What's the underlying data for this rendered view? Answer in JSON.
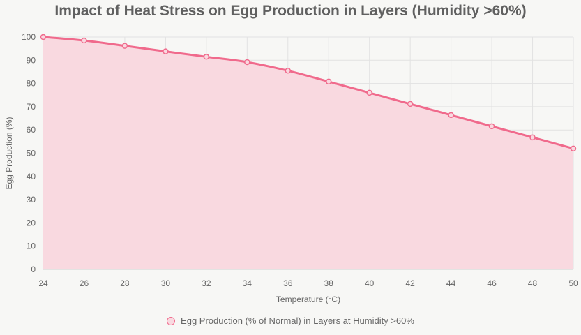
{
  "colors": {
    "line": "#f06a8c",
    "fill": "#f9d9e0",
    "grid": "#e2e2e2",
    "background": "#f7f7f5"
  },
  "chart_data": {
    "type": "area",
    "title": "Impact of Heat Stress on Egg Production in Layers (Humidity >60%)",
    "xlabel": "Temperature (°C)",
    "ylabel": "Egg Production (%)",
    "x": [
      24,
      26,
      28,
      30,
      32,
      34,
      36,
      38,
      40,
      42,
      44,
      46,
      48,
      50
    ],
    "series": [
      {
        "name": "Egg Production (% of Normal) in Layers at Humidity >60%",
        "values": [
          100,
          98.5,
          96.2,
          93.8,
          91.5,
          89.2,
          85.5,
          80.8,
          76.0,
          71.2,
          66.4,
          61.6,
          56.8,
          52.0
        ]
      }
    ],
    "xlim": [
      24,
      50
    ],
    "ylim": [
      0,
      100
    ],
    "xticks": [
      24,
      26,
      28,
      30,
      32,
      34,
      36,
      38,
      40,
      42,
      44,
      46,
      48,
      50
    ],
    "yticks": [
      0,
      10,
      20,
      30,
      40,
      50,
      60,
      70,
      80,
      90,
      100
    ],
    "grid": true,
    "legend": "bottom"
  }
}
